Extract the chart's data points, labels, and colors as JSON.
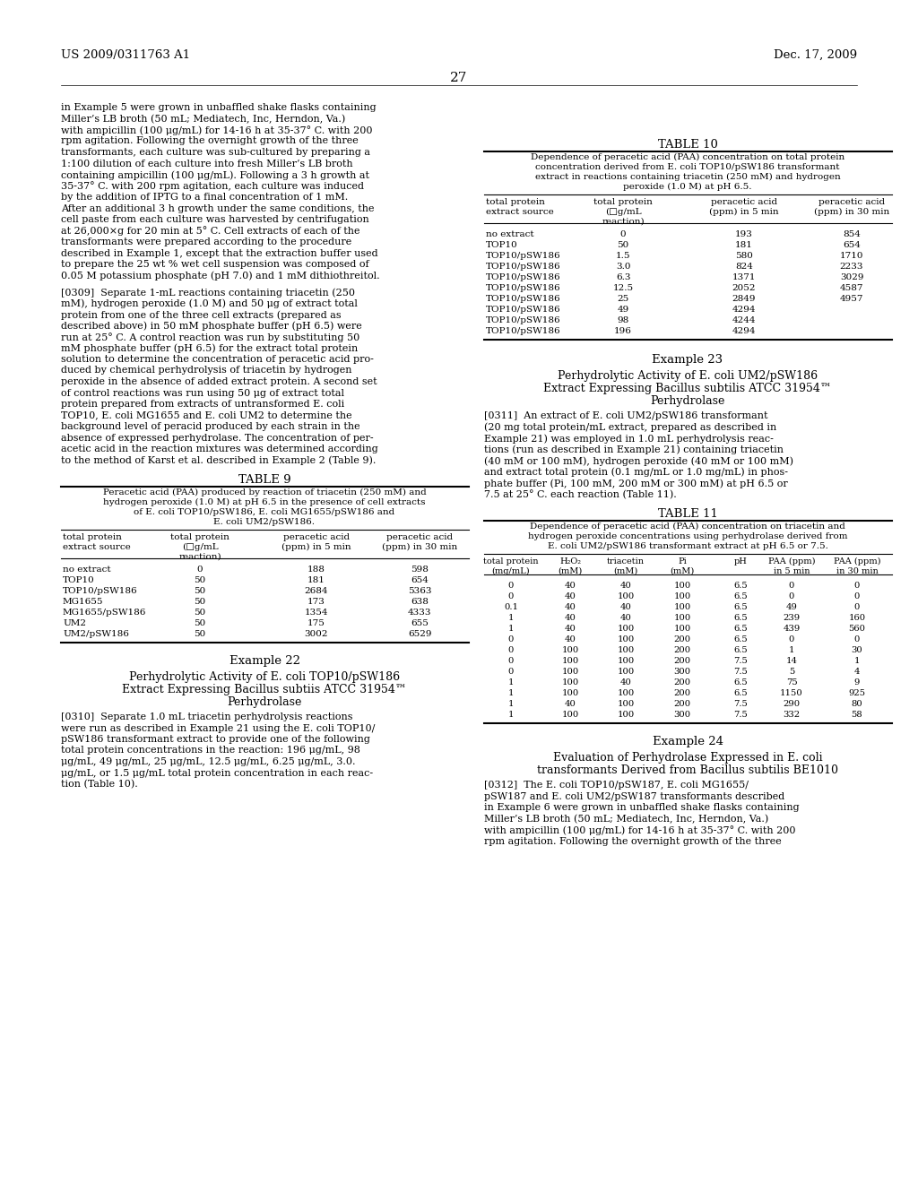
{
  "background_color": "#ffffff",
  "page_width": 10.24,
  "page_height": 13.2,
  "header_left": "US 2009/0311763 A1",
  "header_right": "Dec. 17, 2009",
  "page_number": "27",
  "left_col_text": [
    "in Example 5 were grown in unbaffled shake flasks containing",
    "Miller’s LB broth (50 mL; Mediatech, Inc, Herndon, Va.)",
    "with ampicillin (100 μg/mL) for 14-16 h at 35-37° C. with 200",
    "rpm agitation. Following the overnight growth of the three",
    "transformants, each culture was sub-cultured by preparing a",
    "1:100 dilution of each culture into fresh Miller’s LB broth",
    "containing ampicillin (100 μg/mL). Following a 3 h growth at",
    "35-37° C. with 200 rpm agitation, each culture was induced",
    "by the addition of IPTG to a final concentration of 1 mM.",
    "After an additional 3 h growth under the same conditions, the",
    "cell paste from each culture was harvested by centrifugation",
    "at 26,000×g for 20 min at 5° C. Cell extracts of each of the",
    "transformants were prepared according to the procedure",
    "described in Example 1, except that the extraction buffer used",
    "to prepare the 25 wt % wet cell suspension was composed of",
    "0.05 M potassium phosphate (pH 7.0) and 1 mM dithiothreitol."
  ],
  "left_col_para2": [
    "[0309]  Separate 1-mL reactions containing triacetin (250",
    "mM), hydrogen peroxide (1.0 M) and 50 μg of extract total",
    "protein from one of the three cell extracts (prepared as",
    "described above) in 50 mM phosphate buffer (pH 6.5) were",
    "run at 25° C. A control reaction was run by substituting 50",
    "mM phosphate buffer (pH 6.5) for the extract total protein",
    "solution to determine the concentration of peracetic acid pro-",
    "duced by chemical perhydrolysis of triacetin by hydrogen",
    "peroxide in the absence of added extract protein. A second set",
    "of control reactions was run using 50 μg of extract total",
    "protein prepared from extracts of untransformed E. coli",
    "TOP10, E. coli MG1655 and E. coli UM2 to determine the",
    "background level of peracid produced by each strain in the",
    "absence of expressed perhydrolase. The concentration of per-",
    "acetic acid in the reaction mixtures was determined according",
    "to the method of Karst et al. described in Example 2 (Table 9)."
  ],
  "table9_title": "TABLE 9",
  "table9_caption_lines": [
    "Peracetic acid (PAA) produced by reaction of triacetin (250 mM) and",
    "hydrogen peroxide (1.0 M) at pH 6.5 in the presence of cell extracts",
    "of E. coli TOP10/pSW186, E. coli MG1655/pSW186 and",
    "E. coli UM2/pSW186."
  ],
  "table9_rows": [
    [
      "no extract",
      "0",
      "188",
      "598"
    ],
    [
      "TOP10",
      "50",
      "181",
      "654"
    ],
    [
      "TOP10/pSW186",
      "50",
      "2684",
      "5363"
    ],
    [
      "MG1655",
      "50",
      "173",
      "638"
    ],
    [
      "MG1655/pSW186",
      "50",
      "1354",
      "4333"
    ],
    [
      "UM2",
      "50",
      "175",
      "655"
    ],
    [
      "UM2/pSW186",
      "50",
      "3002",
      "6529"
    ]
  ],
  "example22_title": "Example 22",
  "example22_sub1": "Perhydrolytic Activity of E. coli TOP10/pSW186",
  "example22_sub2": "Extract Expressing Bacillus subtiis ATCC 31954™",
  "example22_sub3": "Perhydrolase",
  "left_col_para3": [
    "[0310]  Separate 1.0 mL triacetin perhydrolysis reactions",
    "were run as described in Example 21 using the E. coli TOP10/",
    "pSW186 transformant extract to provide one of the following",
    "total protein concentrations in the reaction: 196 μg/mL, 98",
    "μg/mL, 49 μg/mL, 25 μg/mL, 12.5 μg/mL, 6.25 μg/mL, 3.0.",
    "μg/mL, or 1.5 μg/mL total protein concentration in each reac-",
    "tion (Table 10)."
  ],
  "table10_title": "TABLE 10",
  "table10_caption_lines": [
    "Dependence of peracetic acid (PAA) concentration on total protein",
    "concentration derived from E. coli TOP10/pSW186 transformant",
    "extract in reactions containing triacetin (250 mM) and hydrogen",
    "peroxide (1.0 M) at pH 6.5."
  ],
  "table10_rows": [
    [
      "no extract",
      "0",
      "193",
      "854"
    ],
    [
      "TOP10",
      "50",
      "181",
      "654"
    ],
    [
      "TOP10/pSW186",
      "1.5",
      "580",
      "1710"
    ],
    [
      "TOP10/pSW186",
      "3.0",
      "824",
      "2233"
    ],
    [
      "TOP10/pSW186",
      "6.3",
      "1371",
      "3029"
    ],
    [
      "TOP10/pSW186",
      "12.5",
      "2052",
      "4587"
    ],
    [
      "TOP10/pSW186",
      "25",
      "2849",
      "4957"
    ],
    [
      "TOP10/pSW186",
      "49",
      "4294",
      ""
    ],
    [
      "TOP10/pSW186",
      "98",
      "4244",
      ""
    ],
    [
      "TOP10/pSW186",
      "196",
      "4294",
      ""
    ]
  ],
  "example23_title": "Example 23",
  "example23_sub1": "Perhydrolytic Activity of E. coli UM2/pSW186",
  "example23_sub2": "Extract Expressing Bacillus subtilis ATCC 31954™",
  "example23_sub3": "Perhydrolase",
  "right_col_para1": [
    "[0311]  An extract of E. coli UM2/pSW186 transformant",
    "(20 mg total protein/mL extract, prepared as described in",
    "Example 21) was employed in 1.0 mL perhydrolysis reac-",
    "tions (run as described in Example 21) containing triacetin",
    "(40 mM or 100 mM), hydrogen peroxide (40 mM or 100 mM)",
    "and extract total protein (0.1 mg/mL or 1.0 mg/mL) in phos-",
    "phate buffer (Pi, 100 mM, 200 mM or 300 mM) at pH 6.5 or",
    "7.5 at 25° C. each reaction (Table 11)."
  ],
  "table11_title": "TABLE 11",
  "table11_caption_lines": [
    "Dependence of peracetic acid (PAA) concentration on triacetin and",
    "hydrogen peroxide concentrations using perhydrolase derived from",
    "E. coli UM2/pSW186 transformant extract at pH 6.5 or 7.5."
  ],
  "table11_rows": [
    [
      "0",
      "40",
      "40",
      "100",
      "6.5",
      "0",
      "0"
    ],
    [
      "0",
      "40",
      "100",
      "100",
      "6.5",
      "0",
      "0"
    ],
    [
      "0.1",
      "40",
      "40",
      "100",
      "6.5",
      "49",
      "0"
    ],
    [
      "1",
      "40",
      "40",
      "100",
      "6.5",
      "239",
      "160"
    ],
    [
      "1",
      "40",
      "100",
      "100",
      "6.5",
      "439",
      "560"
    ],
    [
      "0",
      "40",
      "100",
      "200",
      "6.5",
      "0",
      "0"
    ],
    [
      "0",
      "100",
      "100",
      "200",
      "6.5",
      "1",
      "30"
    ],
    [
      "0",
      "100",
      "100",
      "200",
      "7.5",
      "14",
      "1"
    ],
    [
      "0",
      "100",
      "100",
      "300",
      "7.5",
      "5",
      "4"
    ],
    [
      "1",
      "100",
      "40",
      "200",
      "6.5",
      "75",
      "9"
    ],
    [
      "1",
      "100",
      "100",
      "200",
      "6.5",
      "1150",
      "925"
    ],
    [
      "1",
      "40",
      "100",
      "200",
      "7.5",
      "290",
      "80"
    ],
    [
      "1",
      "100",
      "100",
      "300",
      "7.5",
      "332",
      "58"
    ]
  ],
  "example24_title": "Example 24",
  "example24_sub1": "Evaluation of Perhydrolase Expressed in E. coli",
  "example24_sub2": "transformants Derived from Bacillus subtilis BE1010",
  "right_col_para2": [
    "[0312]  The E. coli TOP10/pSW187, E. coli MG1655/",
    "pSW187 and E. coli UM2/pSW187 transformants described",
    "in Example 6 were grown in unbaffled shake flasks containing",
    "Miller’s LB broth (50 mL; Mediatech, Inc, Herndon, Va.)",
    "with ampicillin (100 μg/mL) for 14-16 h at 35-37° C. with 200",
    "rpm agitation. Following the overnight growth of the three"
  ]
}
